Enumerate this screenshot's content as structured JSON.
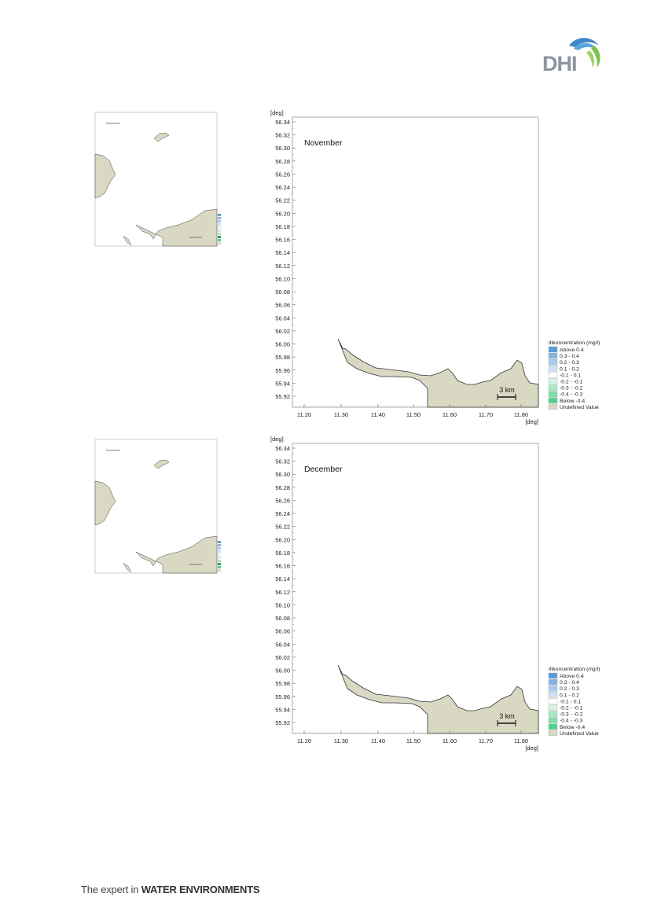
{
  "brand": {
    "logo_text": "DHI",
    "footer_prefix": "The expert in ",
    "footer_bold": "WATER ENVIRONMENTS"
  },
  "colors": {
    "land": "#d9d8c3",
    "land_stroke": "#333333",
    "frame": "#999999",
    "logo_blue": "#3f86c8",
    "logo_green": "#7cc24a",
    "logo_text": "#8a96a0"
  },
  "figures": [
    {
      "id": "november",
      "month_label": "November",
      "small_month_label": "November",
      "deg_label": "[deg]",
      "y_ticks": [
        "56.34",
        "56.32",
        "56.30",
        "56.28",
        "56.26",
        "56.24",
        "56.22",
        "56.20",
        "56.18",
        "56.16",
        "56.14",
        "56.12",
        "56.10",
        "56.08",
        "56.06",
        "56.04",
        "56.02",
        "56.00",
        "55.98",
        "55.96",
        "55.94",
        "55.92"
      ],
      "x_ticks": [
        "11.20",
        "11.30",
        "11.40",
        "11.50",
        "11.60",
        "11.70",
        "11.80"
      ],
      "scale_label": "3 km",
      "legend": {
        "title": "Iltkoncentration (mg/l)",
        "items": [
          {
            "label": "Above  0.4",
            "color": "#5b9bd8"
          },
          {
            "label": "0.3 -  0.4",
            "color": "#85b4e2"
          },
          {
            "label": "0.2 -  0.3",
            "color": "#a9cbec"
          },
          {
            "label": "0.1 -  0.2",
            "color": "#cfe2f5"
          },
          {
            "label": "-0.1 -  0.1",
            "color": "#ffffff"
          },
          {
            "label": "-0.2 - -0.1",
            "color": "#d3f3e2"
          },
          {
            "label": "-0.3 - -0.2",
            "color": "#a8e9c6"
          },
          {
            "label": "-0.4 - -0.3",
            "color": "#7de0aa"
          },
          {
            "label": "Below -0.4",
            "color": "#4fd38c"
          },
          {
            "label": "Undefined Value",
            "color": "#d9d8c3"
          }
        ]
      }
    },
    {
      "id": "december",
      "month_label": "December",
      "small_month_label": "December",
      "deg_label": "[deg]",
      "y_ticks": [
        "56.34",
        "56.32",
        "56.30",
        "56.28",
        "56.26",
        "56.24",
        "56.22",
        "56.20",
        "56.18",
        "56.16",
        "56.14",
        "56.12",
        "56.10",
        "56.08",
        "56.06",
        "56.04",
        "56.02",
        "56.00",
        "55.98",
        "55.96",
        "55.94",
        "55.92"
      ],
      "x_ticks": [
        "11.20",
        "11.30",
        "11.40",
        "11.50",
        "11.60",
        "11.70",
        "11.80"
      ],
      "scale_label": "3 km",
      "legend": {
        "title": "Iltkoncentration (mg/l)",
        "items": [
          {
            "label": "Above  0.4",
            "color": "#5b9bd8"
          },
          {
            "label": "0.3 -  0.4",
            "color": "#85b4e2"
          },
          {
            "label": "0.2 -  0.3",
            "color": "#a9cbec"
          },
          {
            "label": "0.1 -  0.2",
            "color": "#cfe2f5"
          },
          {
            "label": "-0.1 -  0.1",
            "color": "#ffffff"
          },
          {
            "label": "-0.2 - -0.1",
            "color": "#d3f3e2"
          },
          {
            "label": "-0.3 - -0.2",
            "color": "#a8e9c6"
          },
          {
            "label": "-0.4 - -0.3",
            "color": "#7de0aa"
          },
          {
            "label": "Below -0.4",
            "color": "#4fd38c"
          },
          {
            "label": "Undefined Value",
            "color": "#d9d8c3"
          }
        ]
      }
    }
  ]
}
